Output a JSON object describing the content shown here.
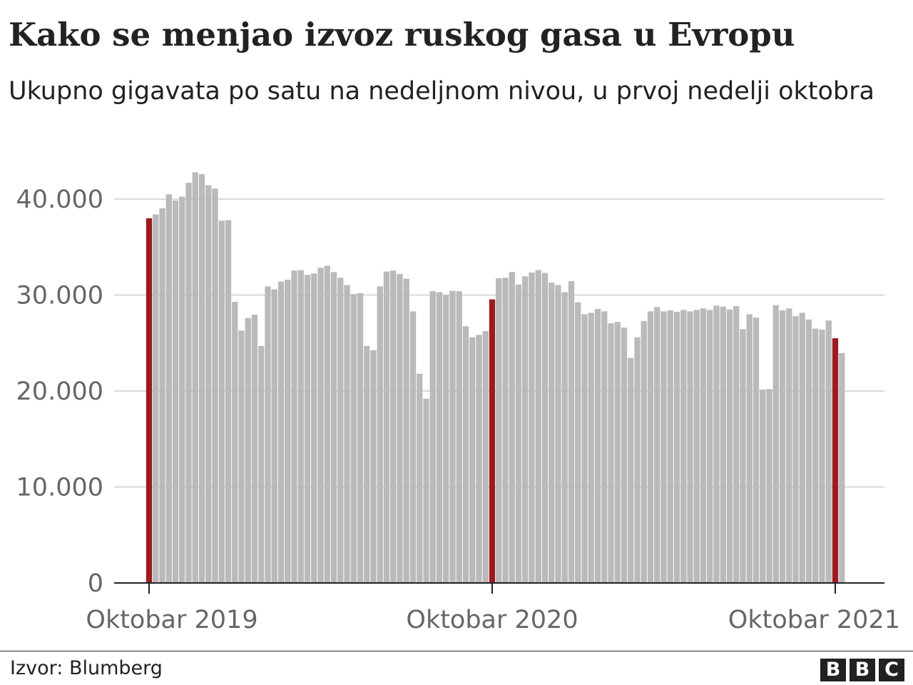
{
  "title": "Kako se menjao izvoz ruskog gasa u Evropu",
  "subtitle": "Ukupno gigavata po satu na nedeljnom nivou, u prvoj nedelji oktobra",
  "source": "Izvor: Blumberg",
  "logo": [
    "B",
    "B",
    "C"
  ],
  "colors": {
    "bar": "#bababa",
    "highlight": "#9b1b1f",
    "grid": "#d9d9d9",
    "axis": "#222222"
  },
  "chart_data": {
    "type": "bar",
    "title": "Kako se menjao izvoz ruskog gasa u Evropu",
    "subtitle": "Ukupno gigavata po satu na nedeljnom nivou, u prvoj nedelji oktobra",
    "ylim": [
      0,
      43000
    ],
    "yticks": [
      0,
      10000,
      20000,
      30000,
      40000
    ],
    "ytick_labels": [
      "0",
      "10.000",
      "20.000",
      "30.000",
      "40.000"
    ],
    "xtick_labels": [
      {
        "index": 0,
        "label": "Oktobar 2019"
      },
      {
        "index": 52,
        "label": "Oktobar 2020"
      },
      {
        "index": 104,
        "label": "Oktobar 2021"
      }
    ],
    "grid": true,
    "highlighted_indices": [
      0,
      52,
      104
    ],
    "values": [
      38000,
      38400,
      39050,
      40500,
      39850,
      40250,
      41700,
      42800,
      42600,
      41450,
      41100,
      37750,
      37800,
      29300,
      26300,
      27600,
      27950,
      24700,
      30900,
      30600,
      31400,
      31600,
      32550,
      32600,
      32100,
      32250,
      32850,
      33050,
      32400,
      31800,
      31050,
      30100,
      30200,
      24700,
      24250,
      30900,
      32450,
      32550,
      32200,
      31700,
      28300,
      21800,
      19200,
      30400,
      30300,
      30000,
      30450,
      30400,
      26750,
      25600,
      25850,
      26250,
      29550,
      31750,
      31800,
      32400,
      31100,
      31950,
      32350,
      32600,
      32300,
      31300,
      31050,
      30300,
      31450,
      29250,
      28000,
      28150,
      28550,
      28300,
      27050,
      27200,
      26600,
      23450,
      25600,
      27300,
      28300,
      28750,
      28300,
      28400,
      28250,
      28450,
      28300,
      28450,
      28600,
      28450,
      28900,
      28800,
      28500,
      28850,
      26450,
      28000,
      27650,
      20150,
      20200,
      28950,
      28400,
      28600,
      27800,
      28150,
      27450,
      26500,
      26400,
      27350,
      25500,
      23950
    ]
  }
}
